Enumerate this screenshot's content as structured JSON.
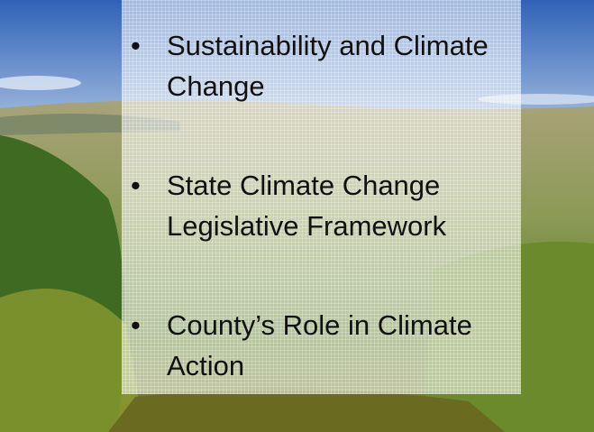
{
  "bullets": [
    "Sustainability and Climate Change",
    "State Climate Change Legislative Framework",
    "County’s Role in Climate Action"
  ]
}
